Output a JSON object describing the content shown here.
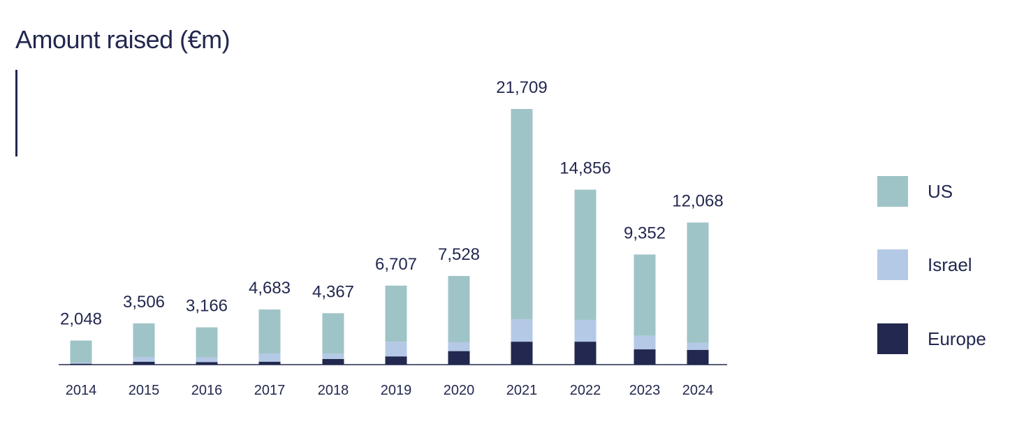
{
  "chart_data": {
    "type": "bar",
    "stacked": true,
    "title": "Amount raised (€m)",
    "categories": [
      "2014",
      "2015",
      "2016",
      "2017",
      "2018",
      "2019",
      "2020",
      "2021",
      "2022",
      "2023",
      "2024"
    ],
    "totals": [
      2048,
      3506,
      3166,
      4683,
      4367,
      6707,
      7528,
      21709,
      14856,
      9352,
      12068
    ],
    "total_labels": [
      "2,048",
      "3,506",
      "3,166",
      "4,683",
      "4,367",
      "6,707",
      "7,528",
      "21,709",
      "14,856",
      "9,352",
      "12,068"
    ],
    "series": [
      {
        "name": "Europe",
        "color": "#22284f",
        "values": [
          80,
          250,
          220,
          250,
          480,
          700,
          1150,
          1950,
          1950,
          1300,
          1250
        ]
      },
      {
        "name": "Israel",
        "color": "#b4c9e6",
        "values": [
          100,
          400,
          400,
          700,
          450,
          1250,
          750,
          1900,
          1850,
          1150,
          600
        ]
      },
      {
        "name": "US",
        "color": "#9fc4c7",
        "values": [
          1868,
          2856,
          2546,
          3733,
          3437,
          4757,
          5628,
          17859,
          11056,
          6902,
          10218
        ]
      }
    ],
    "ylim": [
      0,
      24000
    ],
    "grid": false,
    "legend_position": "right"
  },
  "legend": {
    "us": "US",
    "israel": "Israel",
    "europe": "Europe"
  },
  "colors": {
    "text": "#22284f",
    "us": "#9fc4c7",
    "israel": "#b4c9e6",
    "europe": "#22284f"
  }
}
